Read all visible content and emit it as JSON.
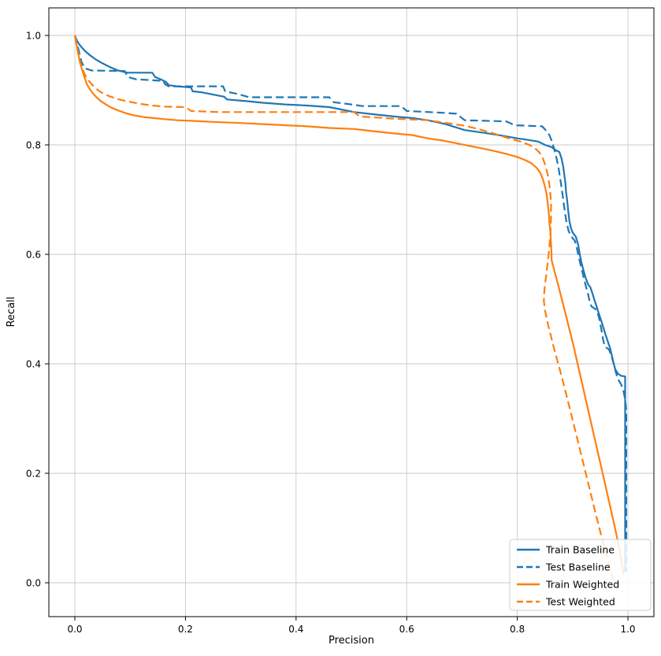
{
  "figure": {
    "title": "",
    "background": "#ffffff"
  },
  "chart_data": {
    "type": "line",
    "title": "",
    "xlabel": "Precision",
    "ylabel": "Recall",
    "xlim": [
      -0.05,
      1.05
    ],
    "ylim": [
      -0.06,
      1.05
    ],
    "x_ticks": [
      0.0,
      0.2,
      0.4,
      0.6,
      0.8,
      1.0
    ],
    "y_ticks": [
      0.0,
      0.2,
      0.4,
      0.6,
      0.8,
      1.0
    ],
    "grid": true,
    "grid_color": "#c9c9c9",
    "legend_position": "lower right",
    "series": [
      {
        "name": "Train Baseline",
        "color": "#1f77b4",
        "style": "solid",
        "points": [
          [
            0.0,
            1.0
          ],
          [
            0.004,
            0.99
          ],
          [
            0.01,
            0.981
          ],
          [
            0.018,
            0.972
          ],
          [
            0.027,
            0.964
          ],
          [
            0.038,
            0.956
          ],
          [
            0.05,
            0.949
          ],
          [
            0.064,
            0.942
          ],
          [
            0.078,
            0.936
          ],
          [
            0.095,
            0.932
          ],
          [
            0.14,
            0.932
          ],
          [
            0.145,
            0.924
          ],
          [
            0.155,
            0.92
          ],
          [
            0.165,
            0.915
          ],
          [
            0.17,
            0.909
          ],
          [
            0.185,
            0.907
          ],
          [
            0.21,
            0.905
          ],
          [
            0.213,
            0.898
          ],
          [
            0.23,
            0.896
          ],
          [
            0.25,
            0.892
          ],
          [
            0.27,
            0.888
          ],
          [
            0.275,
            0.883
          ],
          [
            0.31,
            0.88
          ],
          [
            0.34,
            0.877
          ],
          [
            0.38,
            0.874
          ],
          [
            0.42,
            0.872
          ],
          [
            0.46,
            0.869
          ],
          [
            0.505,
            0.86
          ],
          [
            0.54,
            0.856
          ],
          [
            0.577,
            0.852
          ],
          [
            0.61,
            0.849
          ],
          [
            0.638,
            0.845
          ],
          [
            0.67,
            0.838
          ],
          [
            0.705,
            0.827
          ],
          [
            0.74,
            0.822
          ],
          [
            0.772,
            0.817
          ],
          [
            0.8,
            0.812
          ],
          [
            0.82,
            0.809
          ],
          [
            0.838,
            0.806
          ],
          [
            0.85,
            0.8
          ],
          [
            0.862,
            0.796
          ],
          [
            0.87,
            0.79
          ],
          [
            0.876,
            0.787
          ],
          [
            0.88,
            0.775
          ],
          [
            0.883,
            0.76
          ],
          [
            0.885,
            0.745
          ],
          [
            0.887,
            0.73
          ],
          [
            0.888,
            0.715
          ],
          [
            0.89,
            0.7
          ],
          [
            0.892,
            0.68
          ],
          [
            0.894,
            0.662
          ],
          [
            0.897,
            0.648
          ],
          [
            0.9,
            0.64
          ],
          [
            0.906,
            0.632
          ],
          [
            0.91,
            0.618
          ],
          [
            0.913,
            0.6
          ],
          [
            0.916,
            0.585
          ],
          [
            0.92,
            0.57
          ],
          [
            0.924,
            0.556
          ],
          [
            0.928,
            0.545
          ],
          [
            0.932,
            0.54
          ],
          [
            0.936,
            0.528
          ],
          [
            0.94,
            0.515
          ],
          [
            0.944,
            0.503
          ],
          [
            0.948,
            0.49
          ],
          [
            0.952,
            0.478
          ],
          [
            0.956,
            0.465
          ],
          [
            0.96,
            0.452
          ],
          [
            0.964,
            0.44
          ],
          [
            0.968,
            0.428
          ],
          [
            0.971,
            0.415
          ],
          [
            0.974,
            0.402
          ],
          [
            0.977,
            0.39
          ],
          [
            0.982,
            0.382
          ],
          [
            0.988,
            0.378
          ],
          [
            0.995,
            0.377
          ],
          [
            0.995,
            0.02
          ]
        ]
      },
      {
        "name": "Test Baseline",
        "color": "#1f77b4",
        "style": "dashed",
        "points": [
          [
            0.0,
            1.0
          ],
          [
            0.004,
            0.986
          ],
          [
            0.008,
            0.968
          ],
          [
            0.012,
            0.952
          ],
          [
            0.018,
            0.94
          ],
          [
            0.03,
            0.936
          ],
          [
            0.09,
            0.935
          ],
          [
            0.096,
            0.924
          ],
          [
            0.11,
            0.92
          ],
          [
            0.16,
            0.917
          ],
          [
            0.163,
            0.911
          ],
          [
            0.17,
            0.907
          ],
          [
            0.268,
            0.907
          ],
          [
            0.272,
            0.898
          ],
          [
            0.29,
            0.894
          ],
          [
            0.305,
            0.89
          ],
          [
            0.315,
            0.887
          ],
          [
            0.46,
            0.887
          ],
          [
            0.468,
            0.878
          ],
          [
            0.5,
            0.874
          ],
          [
            0.52,
            0.871
          ],
          [
            0.59,
            0.871
          ],
          [
            0.6,
            0.862
          ],
          [
            0.66,
            0.859
          ],
          [
            0.69,
            0.857
          ],
          [
            0.705,
            0.845
          ],
          [
            0.78,
            0.843
          ],
          [
            0.795,
            0.836
          ],
          [
            0.845,
            0.834
          ],
          [
            0.852,
            0.826
          ],
          [
            0.858,
            0.818
          ],
          [
            0.862,
            0.808
          ],
          [
            0.866,
            0.795
          ],
          [
            0.87,
            0.78
          ],
          [
            0.874,
            0.762
          ],
          [
            0.877,
            0.742
          ],
          [
            0.88,
            0.722
          ],
          [
            0.883,
            0.7
          ],
          [
            0.886,
            0.678
          ],
          [
            0.889,
            0.658
          ],
          [
            0.893,
            0.642
          ],
          [
            0.898,
            0.632
          ],
          [
            0.904,
            0.625
          ],
          [
            0.908,
            0.61
          ],
          [
            0.912,
            0.592
          ],
          [
            0.916,
            0.575
          ],
          [
            0.92,
            0.558
          ],
          [
            0.924,
            0.542
          ],
          [
            0.928,
            0.527
          ],
          [
            0.931,
            0.513
          ],
          [
            0.934,
            0.505
          ],
          [
            0.944,
            0.498
          ],
          [
            0.948,
            0.483
          ],
          [
            0.952,
            0.463
          ],
          [
            0.955,
            0.445
          ],
          [
            0.958,
            0.432
          ],
          [
            0.966,
            0.426
          ],
          [
            0.971,
            0.412
          ],
          [
            0.975,
            0.398
          ],
          [
            0.978,
            0.385
          ],
          [
            0.982,
            0.372
          ],
          [
            0.988,
            0.362
          ],
          [
            0.992,
            0.35
          ],
          [
            0.995,
            0.335
          ],
          [
            0.997,
            0.315
          ],
          [
            0.997,
            0.02
          ]
        ]
      },
      {
        "name": "Train Weighted",
        "color": "#ff7f0e",
        "style": "solid",
        "points": [
          [
            0.0,
            1.0
          ],
          [
            0.003,
            0.984
          ],
          [
            0.006,
            0.968
          ],
          [
            0.009,
            0.952
          ],
          [
            0.013,
            0.938
          ],
          [
            0.017,
            0.925
          ],
          [
            0.021,
            0.913
          ],
          [
            0.026,
            0.903
          ],
          [
            0.032,
            0.895
          ],
          [
            0.039,
            0.887
          ],
          [
            0.047,
            0.88
          ],
          [
            0.056,
            0.874
          ],
          [
            0.066,
            0.868
          ],
          [
            0.078,
            0.863
          ],
          [
            0.092,
            0.858
          ],
          [
            0.107,
            0.854
          ],
          [
            0.124,
            0.851
          ],
          [
            0.142,
            0.849
          ],
          [
            0.162,
            0.847
          ],
          [
            0.185,
            0.845
          ],
          [
            0.21,
            0.844
          ],
          [
            0.25,
            0.842
          ],
          [
            0.3,
            0.84
          ],
          [
            0.34,
            0.838
          ],
          [
            0.38,
            0.836
          ],
          [
            0.42,
            0.834
          ],
          [
            0.46,
            0.831
          ],
          [
            0.505,
            0.829
          ],
          [
            0.54,
            0.825
          ],
          [
            0.577,
            0.821
          ],
          [
            0.61,
            0.818
          ],
          [
            0.638,
            0.812
          ],
          [
            0.665,
            0.808
          ],
          [
            0.69,
            0.803
          ],
          [
            0.715,
            0.798
          ],
          [
            0.74,
            0.793
          ],
          [
            0.762,
            0.788
          ],
          [
            0.782,
            0.783
          ],
          [
            0.8,
            0.778
          ],
          [
            0.815,
            0.772
          ],
          [
            0.826,
            0.766
          ],
          [
            0.835,
            0.758
          ],
          [
            0.841,
            0.75
          ],
          [
            0.846,
            0.738
          ],
          [
            0.85,
            0.724
          ],
          [
            0.853,
            0.71
          ],
          [
            0.855,
            0.694
          ],
          [
            0.857,
            0.676
          ],
          [
            0.858,
            0.658
          ],
          [
            0.86,
            0.64
          ],
          [
            0.861,
            0.62
          ],
          [
            0.862,
            0.6
          ],
          [
            0.862,
            0.59
          ],
          [
            0.88,
            0.52
          ],
          [
            0.9,
            0.44
          ],
          [
            0.92,
            0.352
          ],
          [
            0.94,
            0.263
          ],
          [
            0.96,
            0.175
          ],
          [
            0.975,
            0.108
          ],
          [
            0.985,
            0.06
          ],
          [
            0.992,
            0.015
          ]
        ]
      },
      {
        "name": "Test Weighted",
        "color": "#ff7f0e",
        "style": "dashed",
        "points": [
          [
            0.0,
            1.0
          ],
          [
            0.004,
            0.978
          ],
          [
            0.008,
            0.958
          ],
          [
            0.013,
            0.94
          ],
          [
            0.019,
            0.927
          ],
          [
            0.026,
            0.916
          ],
          [
            0.034,
            0.907
          ],
          [
            0.043,
            0.899
          ],
          [
            0.053,
            0.893
          ],
          [
            0.065,
            0.888
          ],
          [
            0.08,
            0.883
          ],
          [
            0.098,
            0.879
          ],
          [
            0.118,
            0.875
          ],
          [
            0.14,
            0.872
          ],
          [
            0.163,
            0.87
          ],
          [
            0.2,
            0.869
          ],
          [
            0.21,
            0.862
          ],
          [
            0.26,
            0.86
          ],
          [
            0.505,
            0.86
          ],
          [
            0.515,
            0.852
          ],
          [
            0.575,
            0.848
          ],
          [
            0.638,
            0.845
          ],
          [
            0.672,
            0.84
          ],
          [
            0.705,
            0.835
          ],
          [
            0.733,
            0.828
          ],
          [
            0.76,
            0.82
          ],
          [
            0.785,
            0.812
          ],
          [
            0.806,
            0.806
          ],
          [
            0.822,
            0.8
          ],
          [
            0.832,
            0.794
          ],
          [
            0.84,
            0.786
          ],
          [
            0.846,
            0.776
          ],
          [
            0.851,
            0.762
          ],
          [
            0.855,
            0.746
          ],
          [
            0.858,
            0.728
          ],
          [
            0.86,
            0.708
          ],
          [
            0.861,
            0.688
          ],
          [
            0.861,
            0.665
          ],
          [
            0.86,
            0.64
          ],
          [
            0.858,
            0.612
          ],
          [
            0.855,
            0.585
          ],
          [
            0.852,
            0.56
          ],
          [
            0.849,
            0.535
          ],
          [
            0.848,
            0.515
          ],
          [
            0.85,
            0.498
          ],
          [
            0.856,
            0.47
          ],
          [
            0.866,
            0.43
          ],
          [
            0.878,
            0.385
          ],
          [
            0.892,
            0.33
          ],
          [
            0.908,
            0.265
          ],
          [
            0.925,
            0.195
          ],
          [
            0.942,
            0.125
          ],
          [
            0.958,
            0.062
          ],
          [
            0.97,
            0.018
          ],
          [
            0.975,
            0.002
          ]
        ]
      }
    ]
  },
  "legend": {
    "entries": [
      "Train Baseline",
      "Test Baseline",
      "Train Weighted",
      "Test Weighted"
    ]
  }
}
